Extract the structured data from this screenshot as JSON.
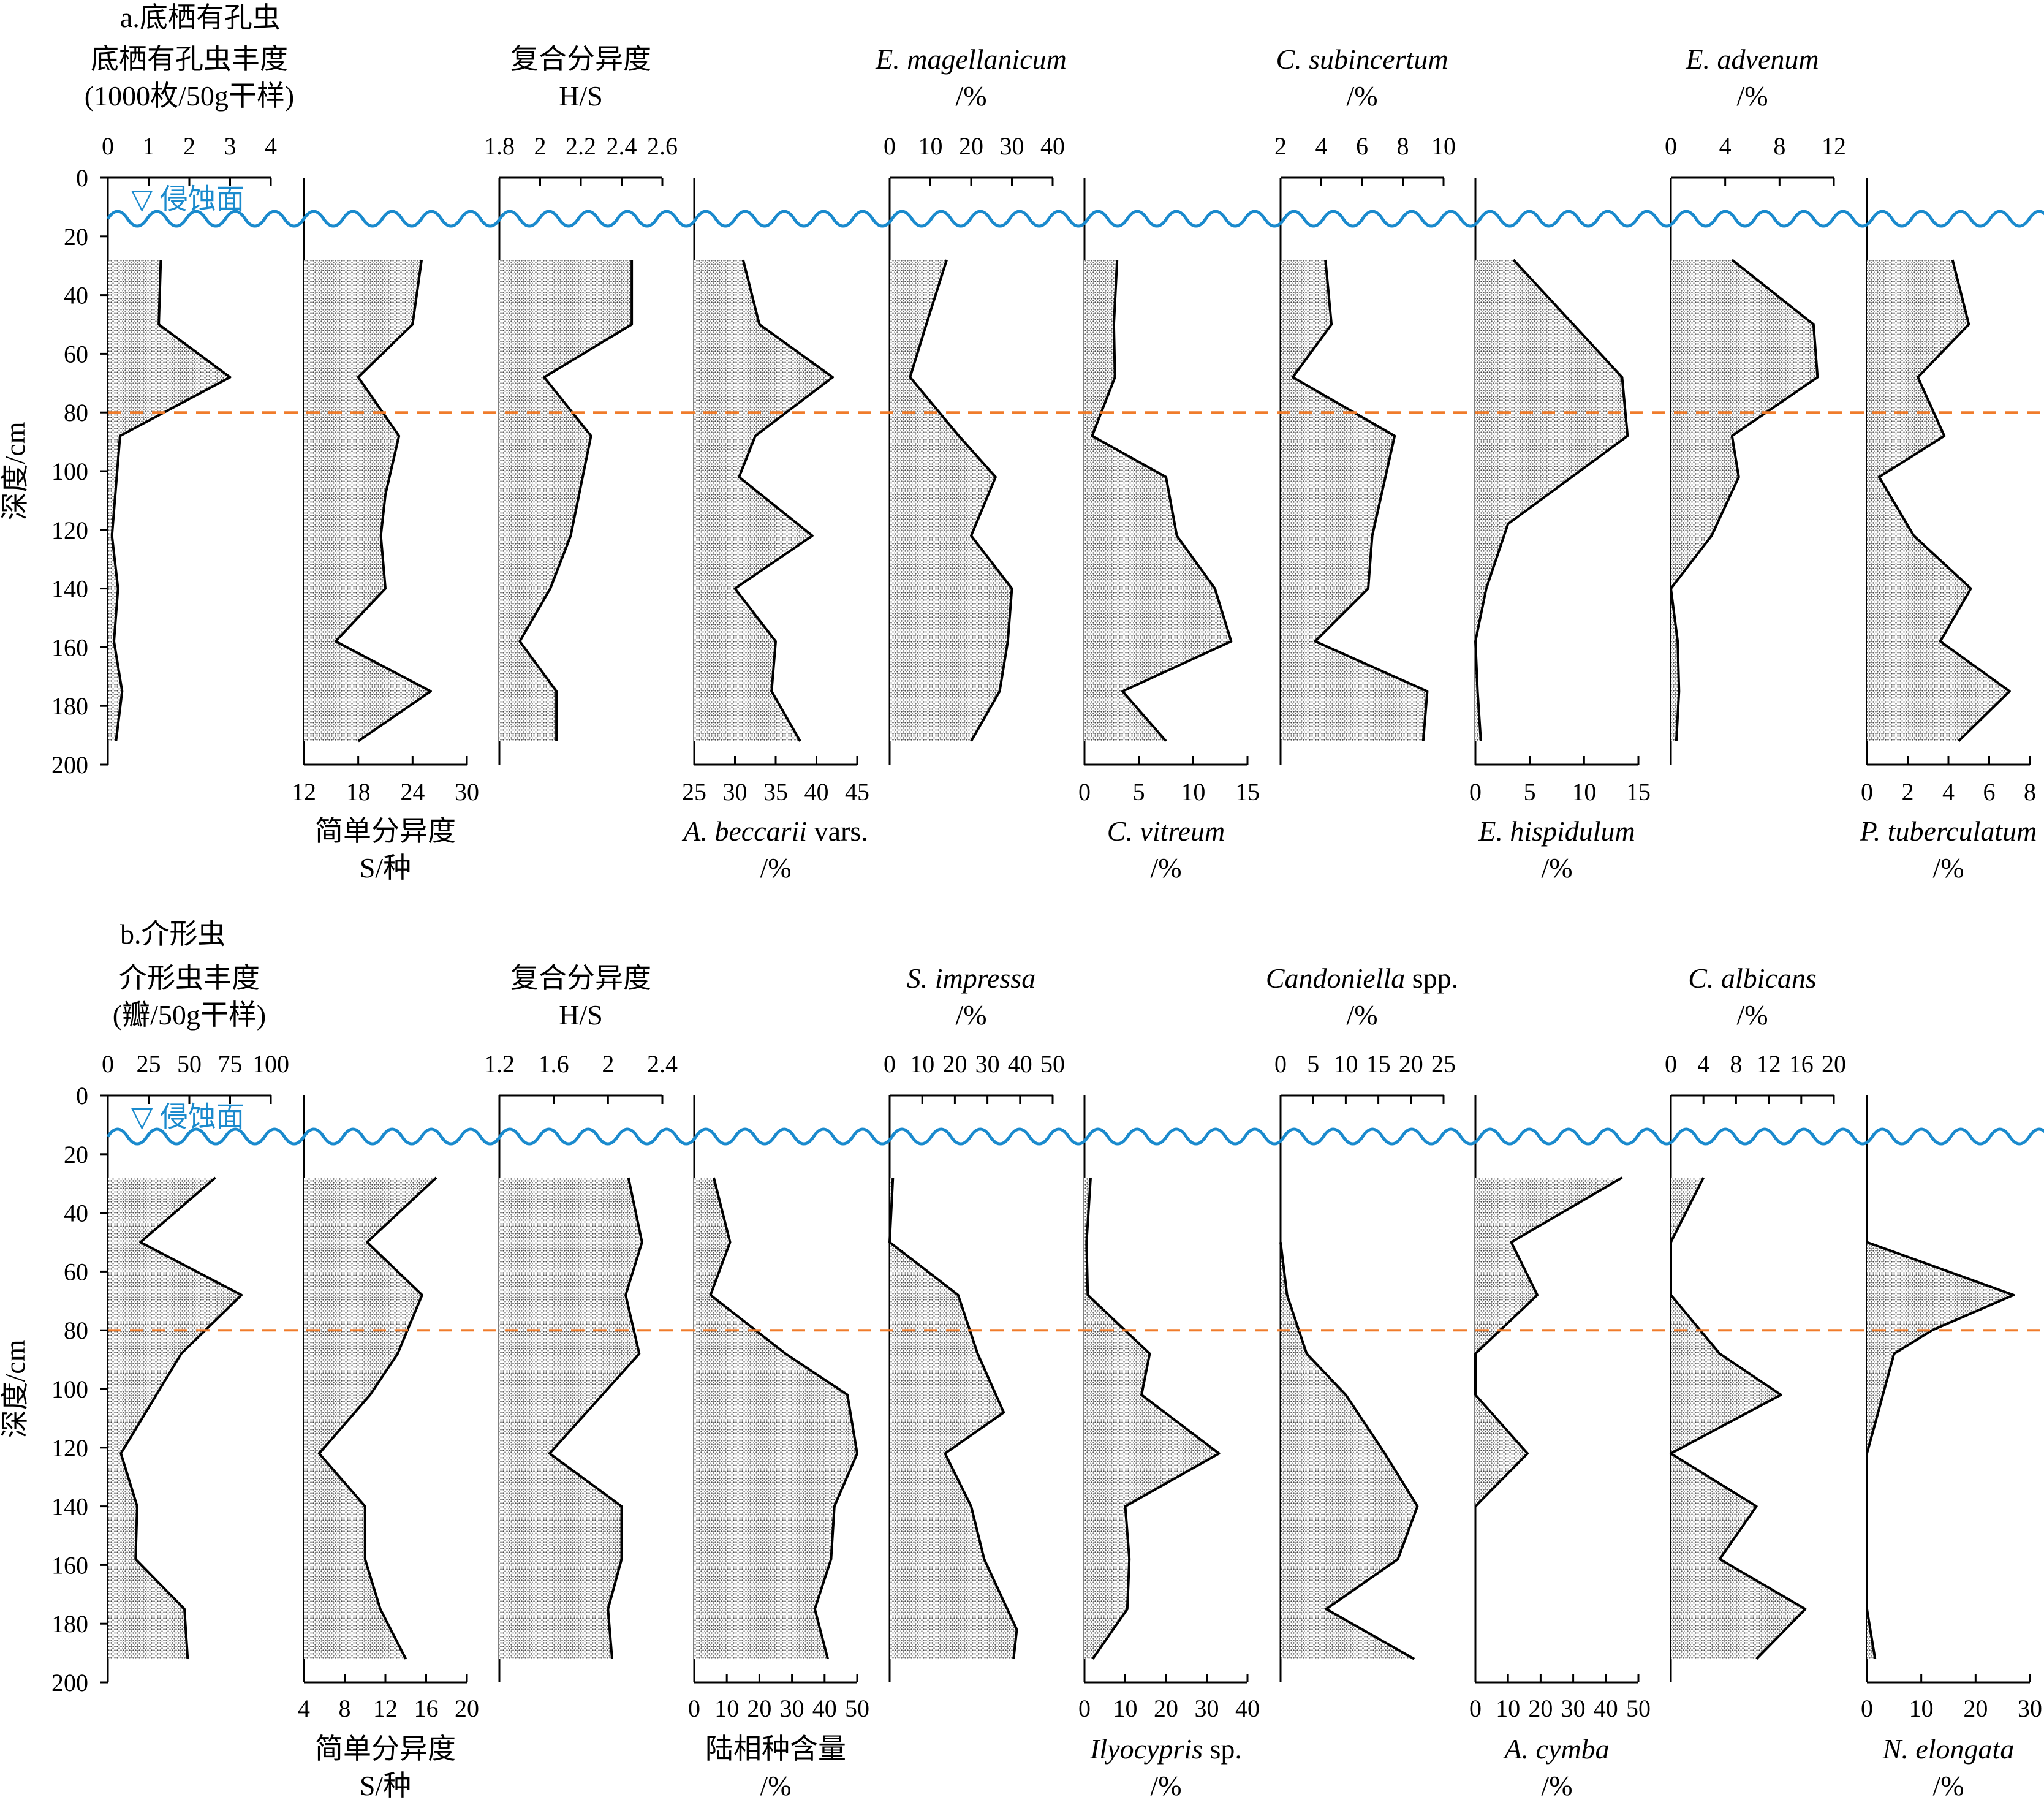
{
  "figure": {
    "erosion_label": "▽ 侵蚀面",
    "depth_axis": {
      "label": "深度/cm",
      "ticks": [
        0,
        20,
        40,
        60,
        80,
        100,
        120,
        140,
        160,
        180,
        200
      ],
      "range": [
        0,
        200
      ]
    },
    "erosion_depth": 14,
    "boundary_depth": 80,
    "colors": {
      "erosion_line": "#1a8acd",
      "boundary_line": "#f07c2b",
      "fill": "#d0d0d0",
      "outline": "#000000"
    }
  },
  "chart_data": [
    {
      "panel_title": "a.底栖有孔虫",
      "type": "area",
      "depth_axis": {
        "label": "深度/cm",
        "range": [
          0,
          200
        ],
        "ticks": [
          0,
          20,
          40,
          60,
          80,
          100,
          120,
          140,
          160,
          180,
          200
        ]
      },
      "series": [
        {
          "label_lines": [
            "底栖有孔虫丰度",
            "(1000枚/50g干样)"
          ],
          "axis_pos": "top",
          "ticks": [
            "0",
            "1",
            "2",
            "3",
            "4"
          ],
          "range": [
            0,
            4
          ],
          "depths": [
            28,
            50,
            68,
            88,
            122,
            140,
            158,
            175,
            192
          ],
          "values": [
            1.3,
            1.25,
            3.0,
            0.3,
            0.1,
            0.25,
            0.15,
            0.35,
            0.2
          ]
        },
        {
          "label_lines": [
            "简单分异度",
            "S/种"
          ],
          "axis_pos": "bottom",
          "ticks": [
            "12",
            "18",
            "24",
            "30"
          ],
          "range": [
            12,
            30
          ],
          "depths": [
            28,
            50,
            68,
            88,
            108,
            122,
            140,
            158,
            175,
            192
          ],
          "values": [
            25,
            24,
            18,
            22.5,
            21,
            20.5,
            21,
            15.5,
            26,
            18
          ]
        },
        {
          "label_lines": [
            "复合分异度",
            "H/S"
          ],
          "axis_pos": "top",
          "ticks": [
            "1.8",
            "2",
            "2.2",
            "2.4",
            "2.6"
          ],
          "range": [
            1.8,
            2.6
          ],
          "depths": [
            28,
            50,
            68,
            88,
            122,
            140,
            158,
            175,
            192
          ],
          "values": [
            2.45,
            2.45,
            2.02,
            2.25,
            2.15,
            2.05,
            1.9,
            2.08,
            2.08
          ]
        },
        {
          "label_lines": [
            "A. beccarii vars.",
            "/%"
          ],
          "italic_part": "A. beccarii",
          "axis_pos": "bottom",
          "ticks": [
            "25",
            "30",
            "35",
            "40",
            "45"
          ],
          "range": [
            25,
            45
          ],
          "depths": [
            28,
            50,
            68,
            88,
            102,
            122,
            140,
            158,
            175,
            192
          ],
          "values": [
            31,
            33,
            42,
            32.5,
            30.5,
            39.5,
            30,
            35,
            34.5,
            38
          ]
        },
        {
          "label_lines": [
            "E. magellanicum",
            "/%"
          ],
          "italic_part": "E. magellanicum",
          "axis_pos": "top",
          "ticks": [
            "0",
            "10",
            "20",
            "30",
            "40"
          ],
          "range": [
            0,
            40
          ],
          "depths": [
            28,
            50,
            68,
            88,
            102,
            122,
            140,
            158,
            175,
            192
          ],
          "values": [
            14,
            9,
            5,
            17,
            26,
            20,
            30,
            29,
            27,
            20
          ]
        },
        {
          "label_lines": [
            "C. vitreum",
            "/%"
          ],
          "italic_part": "C. vitreum",
          "axis_pos": "bottom",
          "ticks": [
            "0",
            "5",
            "10",
            "15"
          ],
          "range": [
            0,
            15
          ],
          "depths": [
            28,
            50,
            68,
            88,
            102,
            122,
            140,
            158,
            175,
            192
          ],
          "values": [
            3,
            2.7,
            2.8,
            0.7,
            7.5,
            8.5,
            12,
            13.5,
            3.5,
            7.5
          ]
        },
        {
          "label_lines": [
            "C. subincertum",
            "/%"
          ],
          "italic_part": "C. subincertum",
          "axis_pos": "top",
          "ticks": [
            "2",
            "4",
            "6",
            "8",
            "10"
          ],
          "range": [
            2,
            10
          ],
          "depths": [
            28,
            50,
            68,
            88,
            122,
            140,
            158,
            175,
            192
          ],
          "values": [
            4.2,
            4.5,
            2.6,
            7.6,
            6.5,
            6.3,
            3.7,
            9.2,
            9
          ]
        },
        {
          "label_lines": [
            "E. hispidulum",
            "/%"
          ],
          "italic_part": "E. hispidulum",
          "axis_pos": "bottom",
          "ticks": [
            "0",
            "5",
            "10",
            "15"
          ],
          "range": [
            0,
            15
          ],
          "depths": [
            28,
            68,
            88,
            118,
            140,
            158,
            175,
            192
          ],
          "values": [
            3.5,
            13.5,
            14,
            3,
            1,
            0,
            0.2,
            0.5
          ]
        },
        {
          "label_lines": [
            "E. advenum",
            "/%"
          ],
          "italic_part": "E. advenum",
          "axis_pos": "top",
          "ticks": [
            "0",
            "4",
            "8",
            "12"
          ],
          "range": [
            0,
            12
          ],
          "depths": [
            28,
            50,
            68,
            88,
            102,
            122,
            140,
            158,
            175,
            192
          ],
          "values": [
            4.5,
            10.5,
            10.8,
            4.5,
            5,
            3,
            0,
            0.5,
            0.6,
            0.4
          ]
        },
        {
          "label_lines": [
            "P. tuberculatum",
            "/%"
          ],
          "italic_part": "P. tuberculatum",
          "axis_pos": "bottom",
          "ticks": [
            "0",
            "2",
            "4",
            "6",
            "8"
          ],
          "range": [
            0,
            8
          ],
          "depths": [
            28,
            50,
            68,
            88,
            102,
            122,
            140,
            158,
            175,
            192
          ],
          "values": [
            4.2,
            5,
            2.5,
            3.8,
            0.6,
            2.3,
            5.1,
            3.6,
            7,
            4.5
          ]
        }
      ]
    },
    {
      "panel_title": "b.介形虫",
      "type": "area",
      "depth_axis": {
        "label": "深度/cm",
        "range": [
          0,
          200
        ],
        "ticks": [
          0,
          20,
          40,
          60,
          80,
          100,
          120,
          140,
          160,
          180,
          200
        ]
      },
      "series": [
        {
          "label_lines": [
            "介形虫丰度",
            "(瓣/50g干样)"
          ],
          "axis_pos": "top",
          "ticks": [
            "0",
            "25",
            "50",
            "75",
            "100"
          ],
          "range": [
            0,
            100
          ],
          "depths": [
            28,
            50,
            68,
            88,
            122,
            140,
            158,
            175,
            192
          ],
          "values": [
            66,
            20,
            82,
            45,
            8,
            18,
            17,
            47,
            49
          ]
        },
        {
          "label_lines": [
            "简单分异度",
            "S/种"
          ],
          "axis_pos": "bottom",
          "ticks": [
            "4",
            "8",
            "12",
            "16",
            "20"
          ],
          "range": [
            4,
            20
          ],
          "depths": [
            28,
            50,
            68,
            88,
            102,
            122,
            140,
            158,
            175,
            192
          ],
          "values": [
            17,
            10.2,
            15.6,
            13.2,
            10.5,
            5.5,
            10,
            10,
            11.5,
            14
          ]
        },
        {
          "label_lines": [
            "复合分异度",
            "H/S"
          ],
          "axis_pos": "top",
          "ticks": [
            "1.2",
            "1.6",
            "2",
            "2.4"
          ],
          "range": [
            1.2,
            2.4
          ],
          "depths": [
            28,
            50,
            68,
            88,
            122,
            140,
            158,
            175,
            192
          ],
          "values": [
            2.15,
            2.25,
            2.13,
            2.23,
            1.57,
            2.1,
            2.1,
            2.0,
            2.03
          ]
        },
        {
          "label_lines": [
            "陆相种含量",
            "/%"
          ],
          "axis_pos": "bottom",
          "ticks": [
            "0",
            "10",
            "20",
            "30",
            "40",
            "50"
          ],
          "range": [
            0,
            50
          ],
          "depths": [
            28,
            50,
            68,
            88,
            102,
            122,
            140,
            158,
            175,
            192
          ],
          "values": [
            6,
            11,
            5,
            28,
            47,
            50,
            43,
            42,
            37,
            41
          ]
        },
        {
          "label_lines": [
            "S. impressa",
            "/%"
          ],
          "italic_part": "S. impressa",
          "axis_pos": "top",
          "ticks": [
            "0",
            "10",
            "20",
            "30",
            "40",
            "50"
          ],
          "range": [
            0,
            50
          ],
          "depths": [
            28,
            50,
            68,
            88,
            108,
            122,
            140,
            158,
            182,
            192
          ],
          "values": [
            1,
            0,
            21,
            27,
            35,
            17,
            25,
            29,
            39,
            38
          ]
        },
        {
          "label_lines": [
            "Ilyocypris sp.",
            "/%"
          ],
          "italic_part": "Ilyocypris",
          "axis_pos": "bottom",
          "ticks": [
            "0",
            "10",
            "20",
            "30",
            "40"
          ],
          "range": [
            0,
            40
          ],
          "depths": [
            28,
            50,
            68,
            88,
            102,
            122,
            140,
            158,
            175,
            192
          ],
          "values": [
            1.5,
            0.5,
            0.8,
            16,
            14,
            33,
            10,
            11,
            10.5,
            2
          ]
        },
        {
          "label_lines": [
            "Candoniella spp.",
            "/%"
          ],
          "italic_part": "Candoniella",
          "axis_pos": "top",
          "ticks": [
            "0",
            "5",
            "10",
            "15",
            "20",
            "25"
          ],
          "range": [
            0,
            25
          ],
          "depths": [
            50,
            68,
            88,
            102,
            122,
            140,
            158,
            175,
            192
          ],
          "values": [
            0,
            1,
            4,
            10,
            16,
            21,
            18,
            7,
            20.5
          ]
        },
        {
          "label_lines": [
            "A. cymba",
            "/%"
          ],
          "italic_part": "A. cymba",
          "axis_pos": "bottom",
          "ticks": [
            "0",
            "10",
            "20",
            "30",
            "40",
            "50"
          ],
          "range": [
            0,
            50
          ],
          "depths": [
            28,
            50,
            68,
            88,
            102,
            122,
            140
          ],
          "values": [
            45,
            11,
            19,
            0,
            0,
            16,
            0
          ]
        },
        {
          "label_lines": [
            "C. albicans",
            "/%"
          ],
          "italic_part": "C. albicans",
          "axis_pos": "top",
          "ticks": [
            "0",
            "4",
            "8",
            "12",
            "16",
            "20"
          ],
          "range": [
            0,
            20
          ],
          "depths": [
            28,
            50,
            68,
            88,
            102,
            122,
            140,
            158,
            175,
            192
          ],
          "values": [
            4,
            0,
            0,
            6,
            13.5,
            0,
            10.5,
            6,
            16.5,
            10.5
          ]
        },
        {
          "label_lines": [
            "N. elongata",
            "/%"
          ],
          "italic_part": "N. elongata",
          "axis_pos": "bottom",
          "ticks": [
            "0",
            "10",
            "20",
            "30"
          ],
          "range": [
            0,
            30
          ],
          "depths": [
            50,
            68,
            80,
            88,
            122,
            175,
            192
          ],
          "values": [
            0,
            27,
            12,
            5,
            0,
            0,
            1.5
          ]
        }
      ]
    }
  ]
}
